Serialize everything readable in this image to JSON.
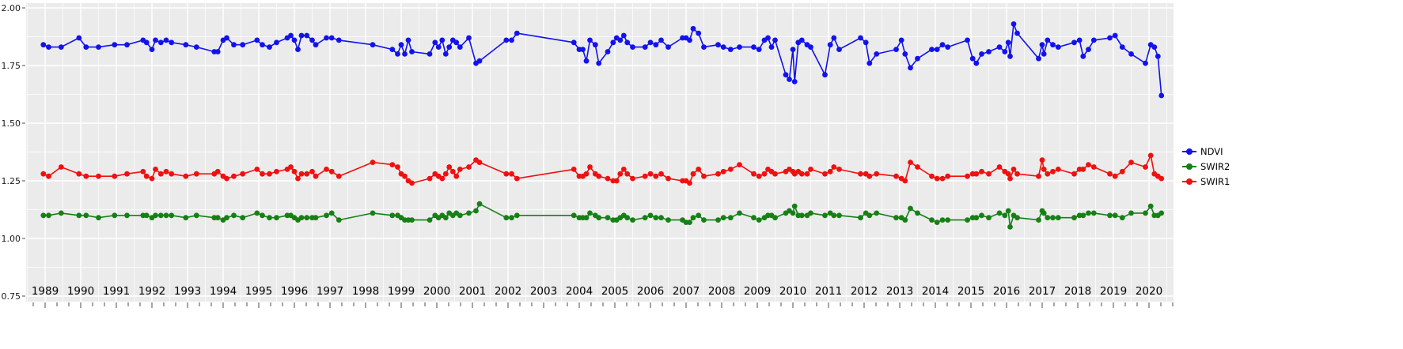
{
  "chart_data": {
    "type": "line",
    "title": "",
    "xlabel": "",
    "ylabel": "",
    "grid": true,
    "legend_position": "right",
    "panel_bg": "#ebebeb",
    "grid_color": "#ffffff",
    "axis_text_color": "#1a1a1a",
    "tick_color": "#4d4d4d",
    "xlim": [
      1988.45,
      2020.75
    ],
    "ylim": [
      0.75,
      2.0
    ],
    "y_ticks": [
      2.0,
      1.75,
      1.5,
      1.25,
      1.0,
      0.75
    ],
    "y_tick_labels": [
      "2.00",
      "1.75",
      "1.50",
      "1.25",
      "1.00",
      "0.75"
    ],
    "x_tick_labels": [
      "1989",
      "1990",
      "1991",
      "1992",
      "1993",
      "1994",
      "1995",
      "1996",
      "1997",
      "1998",
      "1999",
      "2000",
      "2001",
      "2002",
      "2003",
      "2004",
      "2005",
      "2006",
      "2007",
      "2008",
      "2009",
      "2010",
      "2011",
      "2012",
      "2013",
      "2014",
      "2015",
      "2016",
      "2017",
      "2018",
      "2019",
      "2020"
    ],
    "x": [
      1988.95,
      1989.1,
      1989.45,
      1989.95,
      1990.15,
      1990.5,
      1990.95,
      1991.3,
      1991.75,
      1991.85,
      1992.0,
      1992.1,
      1992.25,
      1992.4,
      1992.55,
      1992.95,
      1993.25,
      1993.75,
      1993.85,
      1994.0,
      1994.1,
      1994.3,
      1994.55,
      1994.95,
      1995.1,
      1995.3,
      1995.5,
      1995.8,
      1995.9,
      1996.0,
      1996.1,
      1996.2,
      1996.35,
      1996.5,
      1996.6,
      1996.9,
      1997.05,
      1997.25,
      1998.2,
      1998.75,
      1998.9,
      1999.0,
      1999.1,
      1999.2,
      1999.3,
      1999.8,
      1999.95,
      2000.05,
      2000.15,
      2000.25,
      2000.35,
      2000.45,
      2000.55,
      2000.65,
      2000.9,
      2001.1,
      2001.2,
      2001.95,
      2002.1,
      2002.25,
      2003.85,
      2004.0,
      2004.1,
      2004.2,
      2004.3,
      2004.45,
      2004.55,
      2004.8,
      2004.95,
      2005.05,
      2005.15,
      2005.25,
      2005.35,
      2005.5,
      2005.85,
      2006.0,
      2006.15,
      2006.3,
      2006.5,
      2006.9,
      2007.0,
      2007.1,
      2007.2,
      2007.35,
      2007.5,
      2007.9,
      2008.05,
      2008.25,
      2008.5,
      2008.9,
      2009.05,
      2009.2,
      2009.3,
      2009.4,
      2009.5,
      2009.8,
      2009.9,
      2010.0,
      2010.05,
      2010.15,
      2010.25,
      2010.4,
      2010.5,
      2010.9,
      2011.05,
      2011.15,
      2011.3,
      2011.9,
      2012.05,
      2012.15,
      2012.35,
      2012.9,
      2013.05,
      2013.15,
      2013.3,
      2013.5,
      2013.9,
      2014.05,
      2014.2,
      2014.35,
      2014.9,
      2015.05,
      2015.15,
      2015.3,
      2015.5,
      2015.8,
      2015.95,
      2016.05,
      2016.1,
      2016.2,
      2016.3,
      2016.9,
      2017.0,
      2017.05,
      2017.15,
      2017.3,
      2017.45,
      2017.9,
      2018.05,
      2018.15,
      2018.3,
      2018.45,
      2018.9,
      2019.05,
      2019.25,
      2019.5,
      2019.9,
      2020.05,
      2020.15,
      2020.25,
      2020.35
    ],
    "series": [
      {
        "name": "NDVI",
        "color": "#1212ee",
        "values": [
          1.84,
          1.83,
          1.83,
          1.87,
          1.83,
          1.83,
          1.84,
          1.84,
          1.86,
          1.85,
          1.82,
          1.86,
          1.85,
          1.86,
          1.85,
          1.84,
          1.83,
          1.81,
          1.81,
          1.86,
          1.87,
          1.84,
          1.84,
          1.86,
          1.84,
          1.83,
          1.85,
          1.87,
          1.88,
          1.86,
          1.82,
          1.88,
          1.88,
          1.86,
          1.84,
          1.87,
          1.87,
          1.86,
          1.84,
          1.82,
          1.8,
          1.84,
          1.8,
          1.86,
          1.81,
          1.8,
          1.85,
          1.83,
          1.86,
          1.8,
          1.83,
          1.86,
          1.85,
          1.83,
          1.87,
          1.76,
          1.77,
          1.86,
          1.86,
          1.89,
          1.85,
          1.82,
          1.82,
          1.77,
          1.86,
          1.84,
          1.76,
          1.81,
          1.85,
          1.87,
          1.86,
          1.88,
          1.85,
          1.83,
          1.83,
          1.85,
          1.84,
          1.86,
          1.83,
          1.87,
          1.87,
          1.86,
          1.91,
          1.89,
          1.83,
          1.84,
          1.83,
          1.82,
          1.83,
          1.83,
          1.82,
          1.86,
          1.87,
          1.83,
          1.86,
          1.71,
          1.69,
          1.82,
          1.68,
          1.85,
          1.86,
          1.84,
          1.83,
          1.71,
          1.84,
          1.87,
          1.82,
          1.87,
          1.85,
          1.76,
          1.8,
          1.82,
          1.86,
          1.8,
          1.74,
          1.78,
          1.82,
          1.82,
          1.84,
          1.83,
          1.86,
          1.78,
          1.76,
          1.8,
          1.81,
          1.83,
          1.81,
          1.85,
          1.79,
          1.93,
          1.89,
          1.78,
          1.84,
          1.8,
          1.86,
          1.84,
          1.83,
          1.85,
          1.86,
          1.79,
          1.82,
          1.86,
          1.87,
          1.88,
          1.83,
          1.8,
          1.76,
          1.84,
          1.83,
          1.79,
          1.62
        ]
      },
      {
        "name": "SWIR2",
        "color": "#168016",
        "values": [
          1.1,
          1.1,
          1.11,
          1.1,
          1.1,
          1.09,
          1.1,
          1.1,
          1.1,
          1.1,
          1.09,
          1.1,
          1.1,
          1.1,
          1.1,
          1.09,
          1.1,
          1.09,
          1.09,
          1.08,
          1.09,
          1.1,
          1.09,
          1.11,
          1.1,
          1.09,
          1.09,
          1.1,
          1.1,
          1.09,
          1.08,
          1.09,
          1.09,
          1.09,
          1.09,
          1.1,
          1.11,
          1.08,
          1.11,
          1.1,
          1.1,
          1.09,
          1.08,
          1.08,
          1.08,
          1.08,
          1.1,
          1.09,
          1.1,
          1.09,
          1.11,
          1.1,
          1.11,
          1.1,
          1.11,
          1.12,
          1.15,
          1.09,
          1.09,
          1.1,
          1.1,
          1.09,
          1.09,
          1.09,
          1.11,
          1.1,
          1.09,
          1.09,
          1.08,
          1.08,
          1.09,
          1.1,
          1.09,
          1.08,
          1.09,
          1.1,
          1.09,
          1.09,
          1.08,
          1.08,
          1.07,
          1.07,
          1.09,
          1.1,
          1.08,
          1.08,
          1.09,
          1.09,
          1.11,
          1.09,
          1.08,
          1.09,
          1.1,
          1.1,
          1.09,
          1.11,
          1.12,
          1.11,
          1.14,
          1.1,
          1.1,
          1.1,
          1.11,
          1.1,
          1.11,
          1.1,
          1.1,
          1.09,
          1.11,
          1.1,
          1.11,
          1.09,
          1.09,
          1.08,
          1.13,
          1.11,
          1.08,
          1.07,
          1.08,
          1.08,
          1.08,
          1.09,
          1.09,
          1.1,
          1.09,
          1.11,
          1.1,
          1.12,
          1.05,
          1.1,
          1.09,
          1.08,
          1.12,
          1.11,
          1.09,
          1.09,
          1.09,
          1.09,
          1.1,
          1.1,
          1.11,
          1.11,
          1.1,
          1.1,
          1.09,
          1.11,
          1.11,
          1.14,
          1.1,
          1.1,
          1.11
        ]
      },
      {
        "name": "SWIR1",
        "color": "#f01010",
        "values": [
          1.28,
          1.27,
          1.31,
          1.28,
          1.27,
          1.27,
          1.27,
          1.28,
          1.29,
          1.27,
          1.26,
          1.3,
          1.28,
          1.29,
          1.28,
          1.27,
          1.28,
          1.28,
          1.29,
          1.27,
          1.26,
          1.27,
          1.28,
          1.3,
          1.28,
          1.28,
          1.29,
          1.3,
          1.31,
          1.29,
          1.26,
          1.28,
          1.28,
          1.29,
          1.27,
          1.3,
          1.29,
          1.27,
          1.33,
          1.32,
          1.31,
          1.28,
          1.27,
          1.25,
          1.24,
          1.26,
          1.28,
          1.27,
          1.26,
          1.28,
          1.31,
          1.29,
          1.27,
          1.3,
          1.31,
          1.34,
          1.33,
          1.28,
          1.28,
          1.26,
          1.3,
          1.27,
          1.27,
          1.28,
          1.31,
          1.28,
          1.27,
          1.26,
          1.25,
          1.25,
          1.28,
          1.3,
          1.28,
          1.26,
          1.27,
          1.28,
          1.27,
          1.28,
          1.26,
          1.25,
          1.25,
          1.24,
          1.28,
          1.3,
          1.27,
          1.28,
          1.29,
          1.3,
          1.32,
          1.28,
          1.27,
          1.28,
          1.3,
          1.29,
          1.28,
          1.29,
          1.3,
          1.29,
          1.28,
          1.29,
          1.28,
          1.28,
          1.3,
          1.28,
          1.29,
          1.31,
          1.3,
          1.28,
          1.28,
          1.27,
          1.28,
          1.27,
          1.26,
          1.25,
          1.33,
          1.31,
          1.27,
          1.26,
          1.26,
          1.27,
          1.27,
          1.28,
          1.28,
          1.29,
          1.28,
          1.31,
          1.29,
          1.28,
          1.26,
          1.3,
          1.28,
          1.27,
          1.34,
          1.3,
          1.28,
          1.29,
          1.3,
          1.28,
          1.3,
          1.3,
          1.32,
          1.31,
          1.28,
          1.27,
          1.29,
          1.33,
          1.31,
          1.36,
          1.28,
          1.27,
          1.26
        ]
      }
    ]
  }
}
